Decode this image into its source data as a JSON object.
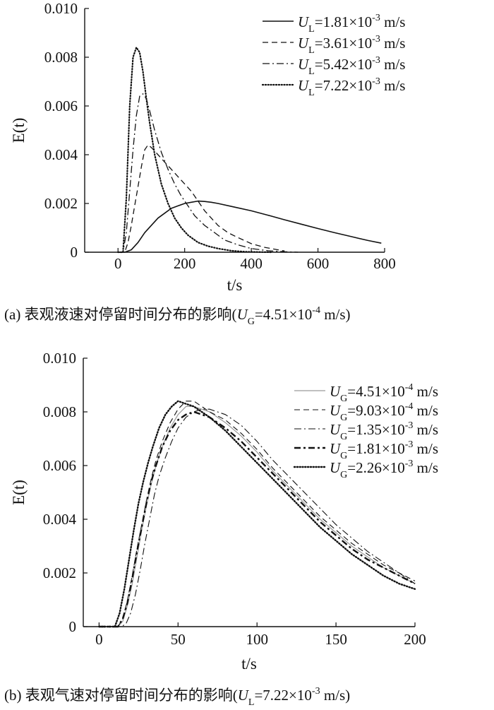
{
  "chart_data": [
    {
      "type": "line",
      "caption": "(a) 表观液速对停留时间分布的影响(U_G=4.51×10⁻⁴ m/s)",
      "caption_parts": {
        "prefix": "(a) 表观液速对停留时间分布的影响(",
        "var": "U",
        "sub": "G",
        "mid": "=4.51×10",
        "sup": "-4",
        "suffix": " m/s)"
      },
      "xlabel": "t/s",
      "ylabel": "E(t)",
      "xlim": [
        -100,
        800
      ],
      "ylim": [
        0,
        0.01
      ],
      "xticks": [
        0,
        200,
        400,
        600,
        800
      ],
      "yticks": [
        0,
        0.002,
        0.004,
        0.006,
        0.008,
        0.01
      ],
      "yticklabels": [
        "0",
        "0.002",
        "0.004",
        "0.006",
        "0.008",
        "0.010"
      ],
      "legend_position": "top-right",
      "series": [
        {
          "name": "U_L=1.81×10⁻³ m/s",
          "label": {
            "var": "U",
            "sub": "L",
            "mid": "=1.81×10",
            "sup": "-3",
            "suffix": " m/s"
          },
          "style": "solid",
          "width": 1.6,
          "x": [
            0,
            20,
            40,
            60,
            80,
            100,
            120,
            140,
            160,
            180,
            200,
            220,
            240,
            260,
            280,
            300,
            350,
            400,
            450,
            500,
            550,
            600,
            650,
            700,
            750,
            790
          ],
          "y": [
            0,
            0,
            0.0001,
            0.0004,
            0.0008,
            0.0011,
            0.0014,
            0.0016,
            0.0018,
            0.0019,
            0.002,
            0.00205,
            0.0021,
            0.00208,
            0.00205,
            0.002,
            0.00185,
            0.0017,
            0.00152,
            0.00133,
            0.00115,
            0.00097,
            0.0008,
            0.00064,
            0.00048,
            0.00037
          ]
        },
        {
          "name": "U_L=3.61×10⁻³ m/s",
          "label": {
            "var": "U",
            "sub": "L",
            "mid": "=3.61×10",
            "sup": "-3",
            "suffix": " m/s"
          },
          "style": "dashed",
          "width": 1.3,
          "x": [
            0,
            20,
            30,
            40,
            50,
            60,
            70,
            80,
            90,
            100,
            120,
            140,
            160,
            180,
            200,
            220,
            240,
            260,
            280,
            300,
            330,
            360,
            400,
            440,
            480,
            500
          ],
          "y": [
            0,
            0,
            0.0004,
            0.0011,
            0.0019,
            0.0027,
            0.0035,
            0.0042,
            0.0044,
            0.0043,
            0.004,
            0.0037,
            0.0034,
            0.0031,
            0.0028,
            0.0025,
            0.0021,
            0.0017,
            0.0014,
            0.0011,
            0.0008,
            0.0006,
            0.00035,
            0.0002,
            0.0001,
            5e-05
          ]
        },
        {
          "name": "U_L=5.42×10⁻³ m/s",
          "label": {
            "var": "U",
            "sub": "L",
            "mid": "=5.42×10",
            "sup": "-3",
            "suffix": " m/s"
          },
          "style": "dashdot",
          "width": 1.3,
          "x": [
            0,
            15,
            25,
            35,
            45,
            55,
            65,
            75,
            85,
            95,
            110,
            130,
            150,
            170,
            190,
            210,
            230,
            260,
            290,
            320,
            360,
            400,
            450,
            500,
            540
          ],
          "y": [
            0,
            0,
            0.0008,
            0.0025,
            0.0042,
            0.0056,
            0.0064,
            0.0065,
            0.0063,
            0.0058,
            0.005,
            0.0041,
            0.0034,
            0.0028,
            0.0023,
            0.0019,
            0.0015,
            0.0011,
            0.0008,
            0.0005,
            0.0003,
            0.00015,
            6e-05,
            2e-05,
            0
          ]
        },
        {
          "name": "U_L=7.22×10⁻³ m/s",
          "label": {
            "var": "U",
            "sub": "L",
            "mid": "=7.22×10",
            "sup": "-3",
            "suffix": " m/s"
          },
          "style": "dotted",
          "width": 2.2,
          "x": [
            0,
            15,
            25,
            35,
            45,
            55,
            65,
            75,
            85,
            95,
            110,
            130,
            150,
            170,
            190,
            210,
            240,
            270,
            300,
            340,
            380,
            420,
            460
          ],
          "y": [
            0,
            0,
            0.0022,
            0.006,
            0.008,
            0.0084,
            0.0082,
            0.0074,
            0.0063,
            0.0053,
            0.004,
            0.0028,
            0.002,
            0.0014,
            0.001,
            0.0007,
            0.0004,
            0.00025,
            0.00015,
            6e-05,
            2e-05,
            1e-05,
            0
          ]
        }
      ]
    },
    {
      "type": "line",
      "caption": "(b) 表观气速对停留时间分布的影响(U_L=7.22×10⁻³ m/s)",
      "caption_parts": {
        "prefix": "(b) 表观气速对停留时间分布的影响(",
        "var": "U",
        "sub": "L",
        "mid": "=7.22×10",
        "sup": "-3",
        "suffix": " m/s)"
      },
      "xlabel": "t/s",
      "ylabel": "E(t)",
      "xlim": [
        -10,
        200
      ],
      "ylim": [
        0,
        0.01
      ],
      "xticks": [
        0,
        50,
        100,
        150,
        200
      ],
      "yticks": [
        0,
        0.002,
        0.004,
        0.006,
        0.008,
        0.01
      ],
      "yticklabels": [
        "0",
        "0.002",
        "0.004",
        "0.006",
        "0.008",
        "0.010"
      ],
      "legend_position": "top-right",
      "series": [
        {
          "name": "U_G=4.51×10⁻⁴ m/s",
          "label": {
            "var": "U",
            "sub": "G",
            "mid": "=4.51×10",
            "sup": "-4",
            "suffix": " m/s"
          },
          "style": "solid-light",
          "width": 1.2,
          "x": [
            0,
            12,
            15,
            18,
            21,
            24,
            27,
            30,
            33,
            36,
            40,
            45,
            50,
            55,
            60,
            65,
            70,
            80,
            90,
            100,
            110,
            120,
            130,
            140,
            150,
            160,
            170,
            180,
            190,
            200
          ],
          "y": [
            0,
            0,
            0.0002,
            0.0008,
            0.0016,
            0.0026,
            0.0036,
            0.0045,
            0.0053,
            0.006,
            0.0067,
            0.0074,
            0.0079,
            0.0082,
            0.0082,
            0.0081,
            0.008,
            0.0076,
            0.0071,
            0.0065,
            0.0058,
            0.0052,
            0.0046,
            0.004,
            0.0035,
            0.003,
            0.0026,
            0.0022,
            0.0019,
            0.0016
          ]
        },
        {
          "name": "U_G=9.03×10⁻⁴ m/s",
          "label": {
            "var": "U",
            "sub": "G",
            "mid": "=9.03×10",
            "sup": "-4",
            "suffix": " m/s"
          },
          "style": "dashed",
          "width": 1.1,
          "x": [
            0,
            12,
            15,
            18,
            21,
            24,
            27,
            30,
            33,
            36,
            40,
            45,
            50,
            55,
            60,
            65,
            70,
            80,
            90,
            100,
            110,
            120,
            130,
            140,
            150,
            160,
            170,
            180,
            190,
            200
          ],
          "y": [
            0,
            0,
            0.0003,
            0.001,
            0.0019,
            0.0029,
            0.0038,
            0.0047,
            0.0055,
            0.0062,
            0.0069,
            0.0076,
            0.0081,
            0.0084,
            0.0084,
            0.0082,
            0.008,
            0.0077,
            0.0072,
            0.0066,
            0.0059,
            0.0053,
            0.0047,
            0.0041,
            0.0036,
            0.0031,
            0.0027,
            0.0023,
            0.002,
            0.0017
          ]
        },
        {
          "name": "U_G=1.35×10⁻³ m/s",
          "label": {
            "var": "U",
            "sub": "G",
            "mid": "=1.35×10",
            "sup": "-3",
            "suffix": " m/s"
          },
          "style": "dashdot",
          "width": 1.1,
          "x": [
            0,
            14,
            17,
            20,
            23,
            26,
            29,
            32,
            35,
            38,
            42,
            46,
            50,
            55,
            60,
            65,
            70,
            80,
            90,
            100,
            110,
            120,
            130,
            140,
            150,
            160,
            170,
            180,
            190,
            200
          ],
          "y": [
            0,
            0,
            0.0001,
            0.0005,
            0.0012,
            0.0021,
            0.0031,
            0.004,
            0.0049,
            0.0056,
            0.0063,
            0.0069,
            0.0074,
            0.0078,
            0.008,
            0.0081,
            0.0081,
            0.0079,
            0.0075,
            0.0069,
            0.0062,
            0.0056,
            0.005,
            0.0044,
            0.0038,
            0.0033,
            0.0028,
            0.0024,
            0.002,
            0.0016
          ]
        },
        {
          "name": "U_G=1.81×10⁻³ m/s",
          "label": {
            "var": "U",
            "sub": "G",
            "mid": "=1.81×10",
            "sup": "-3",
            "suffix": " m/s"
          },
          "style": "dashdot-bold",
          "width": 2.4,
          "x": [
            0,
            12,
            15,
            18,
            21,
            24,
            27,
            30,
            33,
            36,
            40,
            45,
            50,
            55,
            60,
            65,
            70,
            80,
            90,
            100,
            110,
            120,
            130,
            140,
            150,
            160,
            170,
            180,
            190,
            200
          ],
          "y": [
            0,
            0,
            0.0003,
            0.0009,
            0.0018,
            0.0028,
            0.0037,
            0.0046,
            0.0054,
            0.006,
            0.0067,
            0.0073,
            0.0077,
            0.0079,
            0.008,
            0.0079,
            0.0078,
            0.0074,
            0.0069,
            0.0063,
            0.0057,
            0.0051,
            0.0045,
            0.0039,
            0.0034,
            0.0029,
            0.0025,
            0.0022,
            0.0019,
            0.0016
          ]
        },
        {
          "name": "U_G=2.26×10⁻³ m/s",
          "label": {
            "var": "U",
            "sub": "G",
            "mid": "=2.26×10",
            "sup": "-3",
            "suffix": " m/s"
          },
          "style": "dotted",
          "width": 2.4,
          "x": [
            0,
            10,
            13,
            16,
            19,
            22,
            25,
            28,
            31,
            34,
            38,
            42,
            46,
            50,
            55,
            60,
            65,
            70,
            80,
            90,
            100,
            110,
            120,
            130,
            140,
            150,
            160,
            170,
            180,
            190,
            200
          ],
          "y": [
            0,
            0,
            0.0005,
            0.0014,
            0.0025,
            0.0036,
            0.0046,
            0.0054,
            0.0061,
            0.0067,
            0.0074,
            0.0079,
            0.0082,
            0.0084,
            0.0083,
            0.0082,
            0.008,
            0.0078,
            0.0073,
            0.0067,
            0.0061,
            0.0055,
            0.0049,
            0.0043,
            0.0037,
            0.0032,
            0.0027,
            0.0023,
            0.0019,
            0.0016,
            0.0014
          ]
        }
      ]
    }
  ]
}
